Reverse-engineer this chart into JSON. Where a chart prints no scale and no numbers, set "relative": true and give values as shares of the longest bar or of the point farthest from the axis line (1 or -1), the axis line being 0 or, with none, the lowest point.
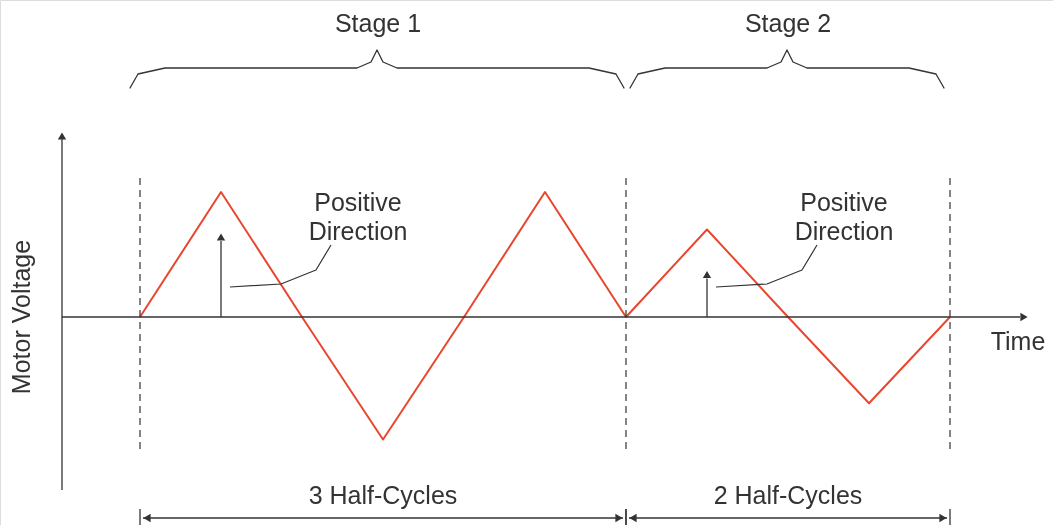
{
  "chart_data": {
    "type": "line",
    "relative": true,
    "xlabel": "Time",
    "ylabel": "Motor Voltage",
    "categories": [
      null,
      null,
      null,
      null,
      null,
      null,
      null,
      null,
      null,
      null,
      null
    ],
    "series": [
      {
        "color": "#e8472e",
        "values": [
          0,
          1,
          0,
          -0.98,
          0,
          1,
          0,
          0.7,
          0,
          -0.69,
          0
        ]
      }
    ],
    "annotations": [
      "Stage 1",
      "Stage 2",
      "Positive Direction",
      "Positive Direction",
      "3 Half-Cycles",
      "2 Half-Cycles"
    ],
    "grid": "x",
    "marker": "none",
    "line_style": "solid"
  }
}
